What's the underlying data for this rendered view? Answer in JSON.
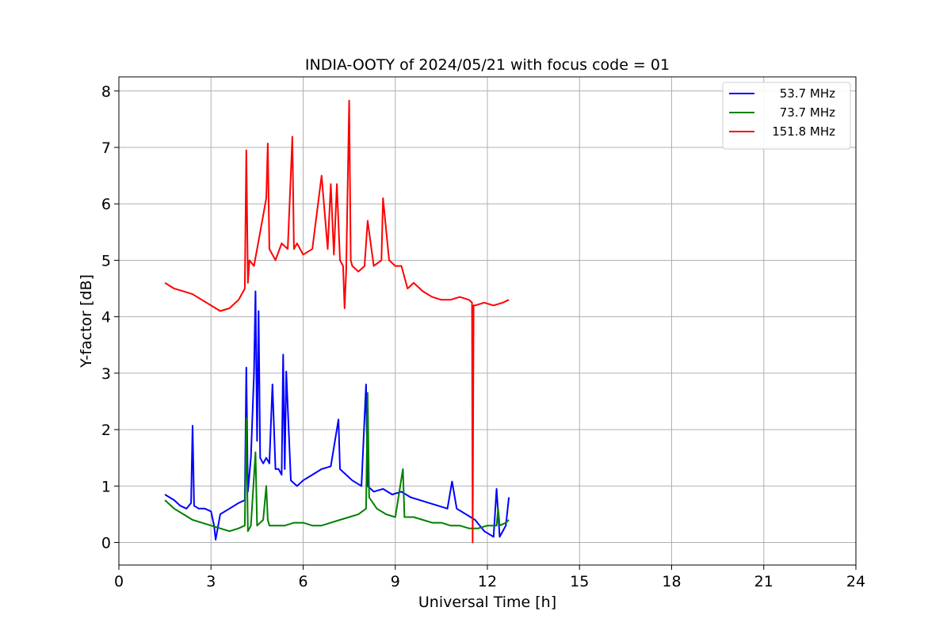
{
  "chart_data": {
    "type": "line",
    "title": "INDIA-OOTY of 2024/05/21 with focus code = 01",
    "xlabel": "Universal Time [h]",
    "ylabel": "Y-factor [dB]",
    "xlim": [
      0,
      24
    ],
    "ylim": [
      -0.4,
      8.25
    ],
    "xticks": [
      0,
      3,
      6,
      9,
      12,
      15,
      18,
      21,
      24
    ],
    "yticks": [
      0,
      1,
      2,
      3,
      4,
      5,
      6,
      7,
      8
    ],
    "grid": true,
    "legend_position": "top-right",
    "series": [
      {
        "name": "53.7 MHz",
        "color": "#0000ff",
        "x": [
          1.5,
          1.8,
          2.0,
          2.2,
          2.35,
          2.4,
          2.45,
          2.6,
          2.8,
          3.0,
          3.1,
          3.15,
          3.3,
          3.6,
          3.9,
          4.1,
          4.15,
          4.2,
          4.3,
          4.4,
          4.45,
          4.5,
          4.55,
          4.6,
          4.7,
          4.8,
          4.9,
          5.0,
          5.1,
          5.2,
          5.3,
          5.35,
          5.4,
          5.45,
          5.6,
          5.8,
          6.0,
          6.3,
          6.6,
          6.9,
          7.15,
          7.2,
          7.3,
          7.6,
          7.9,
          8.05,
          8.1,
          8.3,
          8.6,
          8.9,
          9.2,
          9.5,
          9.8,
          10.1,
          10.4,
          10.7,
          10.85,
          11.0,
          11.3,
          11.6,
          11.9,
          12.2,
          12.3,
          12.4,
          12.6,
          12.7
        ],
        "y": [
          0.85,
          0.75,
          0.65,
          0.6,
          0.7,
          2.07,
          0.65,
          0.6,
          0.6,
          0.55,
          0.3,
          0.05,
          0.5,
          0.6,
          0.7,
          0.75,
          3.1,
          0.9,
          1.5,
          3.0,
          4.45,
          1.8,
          4.1,
          1.5,
          1.4,
          1.5,
          1.4,
          2.8,
          1.3,
          1.3,
          1.2,
          3.33,
          1.3,
          3.03,
          1.1,
          1.0,
          1.1,
          1.2,
          1.3,
          1.35,
          2.18,
          1.3,
          1.25,
          1.1,
          1.0,
          2.8,
          1.0,
          0.9,
          0.95,
          0.85,
          0.9,
          0.8,
          0.75,
          0.7,
          0.65,
          0.6,
          1.08,
          0.6,
          0.5,
          0.4,
          0.2,
          0.1,
          0.95,
          0.1,
          0.3,
          0.8
        ]
      },
      {
        "name": "73.7 MHz",
        "color": "#008000",
        "x": [
          1.5,
          1.8,
          2.1,
          2.4,
          2.7,
          3.0,
          3.3,
          3.6,
          3.9,
          4.1,
          4.15,
          4.2,
          4.3,
          4.45,
          4.5,
          4.7,
          4.8,
          4.85,
          4.9,
          5.1,
          5.4,
          5.7,
          6.0,
          6.3,
          6.6,
          6.9,
          7.2,
          7.5,
          7.8,
          8.05,
          8.1,
          8.15,
          8.4,
          8.7,
          9.0,
          9.25,
          9.3,
          9.6,
          9.9,
          10.2,
          10.5,
          10.8,
          11.1,
          11.4,
          11.7,
          12.0,
          12.3,
          12.35,
          12.4,
          12.6,
          12.7
        ],
        "y": [
          0.75,
          0.6,
          0.5,
          0.4,
          0.35,
          0.3,
          0.25,
          0.2,
          0.25,
          0.3,
          2.2,
          0.2,
          0.3,
          1.6,
          0.3,
          0.4,
          1.0,
          0.4,
          0.3,
          0.3,
          0.3,
          0.35,
          0.35,
          0.3,
          0.3,
          0.35,
          0.4,
          0.45,
          0.5,
          0.6,
          2.65,
          0.8,
          0.6,
          0.5,
          0.45,
          1.3,
          0.45,
          0.45,
          0.4,
          0.35,
          0.35,
          0.3,
          0.3,
          0.25,
          0.25,
          0.3,
          0.3,
          0.6,
          0.3,
          0.35,
          0.4
        ]
      },
      {
        "name": "151.8 MHz",
        "color": "#ff0000",
        "x": [
          1.5,
          1.8,
          2.1,
          2.4,
          2.7,
          3.0,
          3.3,
          3.6,
          3.9,
          4.1,
          4.15,
          4.2,
          4.25,
          4.4,
          4.6,
          4.8,
          4.85,
          4.9,
          5.1,
          5.3,
          5.5,
          5.65,
          5.7,
          5.8,
          6.0,
          6.3,
          6.6,
          6.8,
          6.9,
          7.0,
          7.1,
          7.2,
          7.3,
          7.35,
          7.4,
          7.5,
          7.55,
          7.6,
          7.8,
          8.0,
          8.1,
          8.3,
          8.55,
          8.6,
          8.8,
          9.0,
          9.2,
          9.4,
          9.6,
          9.9,
          10.2,
          10.5,
          10.8,
          11.1,
          11.4,
          11.5,
          11.52,
          11.55,
          11.6,
          11.9,
          12.2,
          12.5,
          12.7
        ],
        "y": [
          4.6,
          4.5,
          4.45,
          4.4,
          4.3,
          4.2,
          4.1,
          4.15,
          4.3,
          4.5,
          6.95,
          4.6,
          5.0,
          4.9,
          5.5,
          6.1,
          7.07,
          5.2,
          5.0,
          5.3,
          5.2,
          7.19,
          5.2,
          5.3,
          5.1,
          5.2,
          6.5,
          5.2,
          6.35,
          5.1,
          6.35,
          5.0,
          4.9,
          4.15,
          4.8,
          7.83,
          5.0,
          4.9,
          4.8,
          4.9,
          5.7,
          4.9,
          5.0,
          6.1,
          5.0,
          4.9,
          4.9,
          4.5,
          4.6,
          4.45,
          4.35,
          4.3,
          4.3,
          4.35,
          4.3,
          4.25,
          0.0,
          4.2,
          4.2,
          4.25,
          4.2,
          4.25,
          4.3
        ]
      }
    ]
  }
}
